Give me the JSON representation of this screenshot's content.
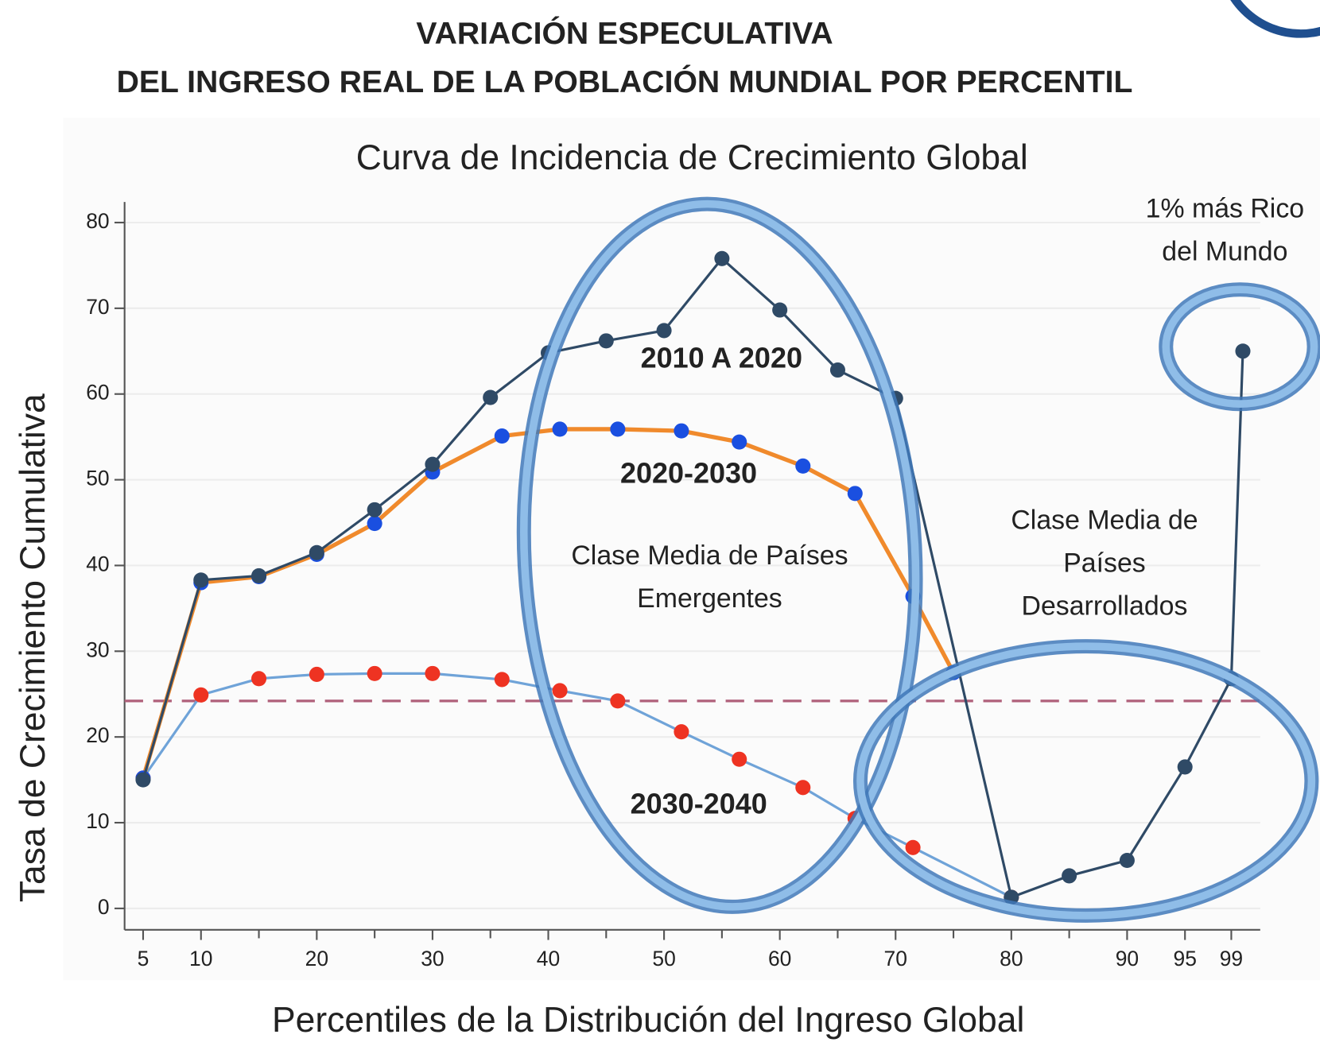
{
  "chart_data": {
    "type": "line",
    "title": [
      "VARIACIÓN ESPECULATIVA",
      "DEL INGRESO REAL DE LA POBLACIÓN MUNDIAL POR PERCENTIL"
    ],
    "subtitle": "Curva de Incidencia de Crecimiento Global",
    "xlabel": "Percentiles de la Distribución del Ingreso Global",
    "ylabel": "Tasa de Crecimiento Cumulativa",
    "xlim": [
      3.4,
      101.5
    ],
    "ylim": [
      -2.5,
      82.4
    ],
    "xticks": [
      5,
      10,
      20,
      30,
      40,
      50,
      60,
      70,
      80,
      90,
      95,
      99
    ],
    "xminor_ticks": [
      15,
      25,
      35,
      45,
      55,
      65,
      75,
      85
    ],
    "yticks": [
      0,
      10,
      20,
      30,
      40,
      50,
      60,
      70,
      80
    ],
    "grid": true,
    "reference_line": {
      "value": 24.2,
      "color": "#b0607a"
    },
    "series": [
      {
        "name": "2010 A 2020",
        "color": "#2f4a66",
        "marker_color": "#2f4a66",
        "x": [
          5,
          10,
          15,
          20,
          25,
          30,
          35,
          40,
          45,
          50,
          55,
          60,
          65,
          70,
          80,
          85,
          90,
          95,
          99,
          100
        ],
        "values": [
          15,
          38.3,
          38.8,
          41.5,
          46.5,
          51.8,
          59.6,
          64.8,
          66.2,
          67.4,
          75.8,
          69.8,
          62.8,
          59.5,
          1.3,
          3.8,
          5.6,
          16.5,
          26.8,
          65
        ]
      },
      {
        "name": "2020-2030",
        "color": "#f08a2c",
        "marker_color": "#1a4fe0",
        "x": [
          5,
          10,
          15,
          20,
          25,
          30,
          36,
          41,
          46,
          51.5,
          56.5,
          62,
          66.5,
          71.5,
          75
        ],
        "values": [
          15.2,
          38,
          38.7,
          41.3,
          44.9,
          50.9,
          55.1,
          55.9,
          55.9,
          55.7,
          54.4,
          51.6,
          48.4,
          36.4,
          27.5
        ]
      },
      {
        "name": "2030-2040",
        "color": "#6fa3d8",
        "marker_color": "#ee3322",
        "x": [
          5,
          10,
          15,
          20,
          25,
          30,
          36,
          41,
          46,
          51.5,
          56.5,
          62,
          66.5,
          71.5,
          80
        ],
        "values": [
          15.2,
          24.9,
          26.8,
          27.3,
          27.4,
          27.4,
          26.7,
          25.4,
          24.2,
          20.6,
          17.4,
          14.1,
          10.5,
          7.1,
          1.3
        ]
      }
    ],
    "annotations": [
      {
        "lines": [
          "1% más Rico",
          "del Mundo"
        ]
      },
      {
        "lines": [
          "Clase Media de Países",
          "Emergentes"
        ]
      },
      {
        "lines": [
          "Clase Media de",
          "Países",
          "Desarrollados"
        ]
      }
    ]
  }
}
